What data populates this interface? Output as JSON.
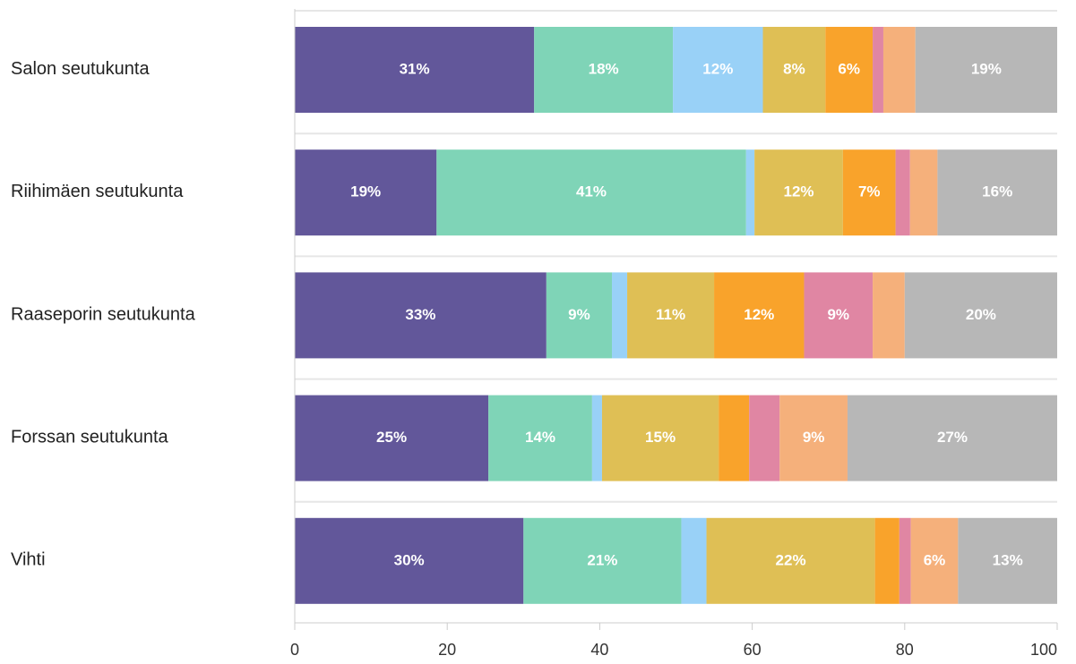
{
  "chart_data": {
    "type": "stacked-bar-horizontal",
    "categories": [
      "Salon seutukunta",
      "Riihimäen seutukunta",
      "Raaseporin seutukunta",
      "Forssan seutukunta",
      "Vihti"
    ],
    "series": [
      {
        "color": "#62579a",
        "values": [
          31.4,
          18.6,
          33.0,
          25.4,
          30.0
        ],
        "value_labels": [
          "31%",
          "19%",
          "33%",
          "25%",
          "30%"
        ]
      },
      {
        "color": "#7fd4b7",
        "values": [
          18.2,
          40.6,
          8.6,
          13.6,
          20.7
        ],
        "value_labels": [
          "18%",
          "41%",
          "9%",
          "14%",
          "21%"
        ]
      },
      {
        "color": "#99d1f7",
        "values": [
          11.8,
          1.1,
          2.0,
          1.3,
          3.3
        ],
        "value_labels": [
          "12%",
          null,
          null,
          null,
          null
        ]
      },
      {
        "color": "#dfbf55",
        "values": [
          8.2,
          11.6,
          11.4,
          15.3,
          22.1
        ],
        "value_labels": [
          "8%",
          "12%",
          "11%",
          "15%",
          "22%"
        ]
      },
      {
        "color": "#f9a32b",
        "values": [
          6.2,
          6.9,
          11.8,
          4.0,
          3.2
        ],
        "value_labels": [
          "6%",
          "7%",
          "12%",
          null,
          null
        ]
      },
      {
        "color": "#e086a3",
        "values": [
          1.4,
          1.9,
          9.0,
          4.0,
          1.5
        ],
        "value_labels": [
          null,
          null,
          "9%",
          null,
          null
        ]
      },
      {
        "color": "#f5b07b",
        "values": [
          4.2,
          3.6,
          4.2,
          8.9,
          6.2
        ],
        "value_labels": [
          null,
          null,
          null,
          "9%",
          "6%"
        ]
      },
      {
        "color": "#b7b7b7",
        "values": [
          18.6,
          15.7,
          20.0,
          27.5,
          13.0
        ],
        "value_labels": [
          "19%",
          "16%",
          "20%",
          "27%",
          "13%"
        ]
      }
    ],
    "xlim": [
      0,
      100
    ],
    "xticks": [
      0,
      20,
      40,
      60,
      80,
      100
    ]
  }
}
